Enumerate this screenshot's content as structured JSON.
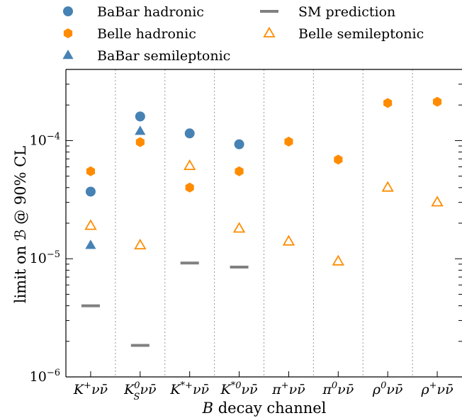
{
  "chart_data": {
    "type": "scatter",
    "xlabel": "B decay channel",
    "ylabel": "limit on ℬ @ 90% CL",
    "yscale": "log",
    "ylim": [
      1e-06,
      0.0004
    ],
    "y_tick_values": [
      1e-06,
      1e-05,
      0.0001
    ],
    "y_tick_labels": [
      {
        "base": "10",
        "exp": "−6"
      },
      {
        "base": "10",
        "exp": "−5"
      },
      {
        "base": "10",
        "exp": "−4"
      }
    ],
    "categories": [
      {
        "main": "K",
        "sup": "+",
        "sub": "",
        "tail": "νν̄"
      },
      {
        "main": "K",
        "sup": "0",
        "sub": "S",
        "tail": "νν̄"
      },
      {
        "main": "K",
        "sup": "*+",
        "sub": "",
        "tail": "νν̄"
      },
      {
        "main": "K",
        "sup": "*0",
        "sub": "",
        "tail": "νν̄"
      },
      {
        "main": "π",
        "sup": "+",
        "sub": "",
        "tail": "νν̄"
      },
      {
        "main": "π",
        "sup": "0",
        "sub": "",
        "tail": "νν̄"
      },
      {
        "main": "ρ",
        "sup": "0",
        "sub": "",
        "tail": "νν̄"
      },
      {
        "main": "ρ",
        "sup": "+",
        "sub": "",
        "tail": "νν̄"
      }
    ],
    "legend_position": "top",
    "grid": "vertical dotted separators",
    "series": [
      {
        "name": "BaBar hadronic",
        "marker": "circle",
        "color": "#4682b4",
        "values": [
          3.7e-05,
          0.00016,
          0.000115,
          9.3e-05,
          null,
          null,
          null,
          null
        ]
      },
      {
        "name": "Belle hadronic",
        "marker": "hexagon",
        "color": "#ff8c00",
        "values": [
          5.5e-05,
          9.7e-05,
          4e-05,
          5.5e-05,
          9.8e-05,
          6.9e-05,
          0.000208,
          0.000213
        ]
      },
      {
        "name": "BaBar semileptonic",
        "marker": "triangle",
        "color": "#4682b4",
        "values": [
          1.3e-05,
          0.00012,
          null,
          null,
          null,
          null,
          null,
          null
        ]
      },
      {
        "name": "SM prediction",
        "marker": "bar",
        "color": "#808080",
        "values": [
          4e-06,
          1.85e-06,
          9.2e-06,
          8.5e-06,
          null,
          null,
          null,
          null
        ]
      },
      {
        "name": "Belle semileptonic",
        "marker": "triangle-open",
        "color": "#ff8c00",
        "values": [
          1.9e-05,
          1.3e-05,
          6.1e-05,
          1.8e-05,
          1.4e-05,
          9.5e-06,
          4e-05,
          3e-05
        ]
      }
    ]
  }
}
